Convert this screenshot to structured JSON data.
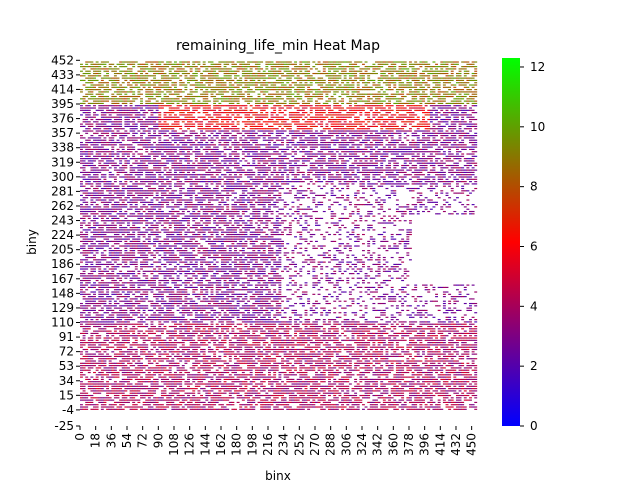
{
  "chart_data": {
    "type": "heatmap",
    "title": "remaining_life_min Heat Map",
    "xlabel": "binx",
    "ylabel": "biny",
    "x_ticks": [
      0,
      18,
      36,
      54,
      72,
      90,
      108,
      126,
      144,
      162,
      180,
      198,
      216,
      234,
      252,
      270,
      288,
      306,
      324,
      342,
      360,
      378,
      396,
      414,
      432,
      450
    ],
    "y_ticks": [
      452,
      433,
      414,
      395,
      376,
      357,
      338,
      319,
      300,
      281,
      262,
      243,
      224,
      205,
      186,
      167,
      148,
      129,
      110,
      91,
      72,
      53,
      34,
      15,
      -4,
      -25
    ],
    "xlim": [
      0,
      455
    ],
    "ylim": [
      -25,
      455
    ],
    "colorbar": {
      "ticks": [
        0,
        2,
        4,
        6,
        8,
        10,
        12
      ],
      "range": [
        0,
        12.3
      ],
      "colors": [
        "#0000ff",
        "#ff0000",
        "#00ff00"
      ]
    },
    "grid": false,
    "value_regions": [
      {
        "desc": "top band",
        "y_range": [
          395,
          455
        ],
        "x_range": [
          0,
          455
        ],
        "approx_value": 9
      },
      {
        "desc": "upper red band",
        "y_range": [
          360,
          395
        ],
        "x_range": [
          90,
          400
        ],
        "approx_value": 6
      },
      {
        "desc": "middle",
        "y_range": [
          110,
          360
        ],
        "x_range": [
          0,
          455
        ],
        "approx_value": 3
      },
      {
        "desc": "lower",
        "y_range": [
          -4,
          110
        ],
        "x_range": [
          0,
          455
        ],
        "approx_value": 4
      }
    ]
  }
}
